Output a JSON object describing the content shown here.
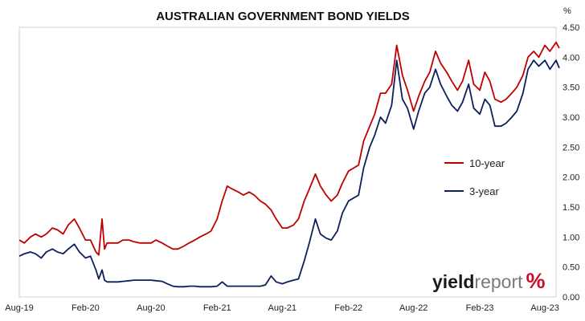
{
  "chart_data": {
    "type": "line",
    "title": "AUSTRALIAN GOVERNMENT BOND YIELDS",
    "ylabel": "%",
    "ylim": [
      0,
      4.5
    ],
    "yticks": [
      "0.00",
      "0.50",
      "1.00",
      "1.50",
      "2.00",
      "2.50",
      "3.00",
      "3.50",
      "4.00",
      "4.50"
    ],
    "x_range": [
      "2019-08",
      "2023-09"
    ],
    "xticks": [
      {
        "date": "2019-08",
        "label": "Aug-19"
      },
      {
        "date": "2020-02",
        "label": "Feb-20"
      },
      {
        "date": "2020-08",
        "label": "Aug-20"
      },
      {
        "date": "2021-02",
        "label": "Feb-21"
      },
      {
        "date": "2021-08",
        "label": "Aug-21"
      },
      {
        "date": "2022-02",
        "label": "Feb-22"
      },
      {
        "date": "2022-08",
        "label": "Aug-22"
      },
      {
        "date": "2023-02",
        "label": "Feb-23"
      },
      {
        "date": "2023-08",
        "label": "Aug-23"
      }
    ],
    "y_axis_side": "right",
    "grid": false,
    "legend_position": "center-right",
    "series": [
      {
        "name": "10-year",
        "color": "#c00000",
        "points": [
          [
            "2019-08-01",
            0.95
          ],
          [
            "2019-08-15",
            0.9
          ],
          [
            "2019-09-01",
            1.0
          ],
          [
            "2019-09-15",
            1.05
          ],
          [
            "2019-10-01",
            1.0
          ],
          [
            "2019-10-15",
            1.05
          ],
          [
            "2019-11-01",
            1.15
          ],
          [
            "2019-11-15",
            1.12
          ],
          [
            "2019-12-01",
            1.05
          ],
          [
            "2019-12-15",
            1.2
          ],
          [
            "2020-01-01",
            1.3
          ],
          [
            "2020-01-15",
            1.15
          ],
          [
            "2020-02-01",
            0.95
          ],
          [
            "2020-02-15",
            0.95
          ],
          [
            "2020-03-01",
            0.75
          ],
          [
            "2020-03-09",
            0.7
          ],
          [
            "2020-03-18",
            1.3
          ],
          [
            "2020-03-25",
            0.8
          ],
          [
            "2020-04-01",
            0.9
          ],
          [
            "2020-04-15",
            0.9
          ],
          [
            "2020-05-01",
            0.9
          ],
          [
            "2020-05-15",
            0.95
          ],
          [
            "2020-06-01",
            0.95
          ],
          [
            "2020-06-15",
            0.92
          ],
          [
            "2020-07-01",
            0.9
          ],
          [
            "2020-07-15",
            0.9
          ],
          [
            "2020-08-01",
            0.9
          ],
          [
            "2020-08-15",
            0.95
          ],
          [
            "2020-09-01",
            0.9
          ],
          [
            "2020-09-15",
            0.85
          ],
          [
            "2020-10-01",
            0.8
          ],
          [
            "2020-10-15",
            0.8
          ],
          [
            "2020-11-01",
            0.85
          ],
          [
            "2020-11-15",
            0.9
          ],
          [
            "2020-12-01",
            0.95
          ],
          [
            "2020-12-15",
            1.0
          ],
          [
            "2021-01-01",
            1.05
          ],
          [
            "2021-01-15",
            1.1
          ],
          [
            "2021-02-01",
            1.3
          ],
          [
            "2021-02-15",
            1.6
          ],
          [
            "2021-03-01",
            1.85
          ],
          [
            "2021-03-15",
            1.8
          ],
          [
            "2021-04-01",
            1.75
          ],
          [
            "2021-04-15",
            1.7
          ],
          [
            "2021-05-01",
            1.75
          ],
          [
            "2021-05-15",
            1.7
          ],
          [
            "2021-06-01",
            1.6
          ],
          [
            "2021-06-15",
            1.55
          ],
          [
            "2021-07-01",
            1.45
          ],
          [
            "2021-07-15",
            1.3
          ],
          [
            "2021-08-01",
            1.15
          ],
          [
            "2021-08-15",
            1.15
          ],
          [
            "2021-09-01",
            1.2
          ],
          [
            "2021-09-15",
            1.3
          ],
          [
            "2021-10-01",
            1.6
          ],
          [
            "2021-10-15",
            1.8
          ],
          [
            "2021-11-01",
            2.05
          ],
          [
            "2021-11-15",
            1.85
          ],
          [
            "2021-12-01",
            1.7
          ],
          [
            "2021-12-15",
            1.6
          ],
          [
            "2022-01-01",
            1.7
          ],
          [
            "2022-01-15",
            1.9
          ],
          [
            "2022-02-01",
            2.1
          ],
          [
            "2022-02-15",
            2.15
          ],
          [
            "2022-03-01",
            2.2
          ],
          [
            "2022-03-15",
            2.6
          ],
          [
            "2022-04-01",
            2.85
          ],
          [
            "2022-04-15",
            3.05
          ],
          [
            "2022-05-01",
            3.4
          ],
          [
            "2022-05-15",
            3.4
          ],
          [
            "2022-06-01",
            3.55
          ],
          [
            "2022-06-15",
            4.2
          ],
          [
            "2022-07-01",
            3.7
          ],
          [
            "2022-07-15",
            3.45
          ],
          [
            "2022-08-01",
            3.1
          ],
          [
            "2022-08-15",
            3.35
          ],
          [
            "2022-09-01",
            3.6
          ],
          [
            "2022-09-15",
            3.75
          ],
          [
            "2022-10-01",
            4.1
          ],
          [
            "2022-10-15",
            3.9
          ],
          [
            "2022-11-01",
            3.75
          ],
          [
            "2022-11-15",
            3.6
          ],
          [
            "2022-12-01",
            3.45
          ],
          [
            "2022-12-15",
            3.6
          ],
          [
            "2023-01-01",
            3.95
          ],
          [
            "2023-01-15",
            3.55
          ],
          [
            "2023-02-01",
            3.45
          ],
          [
            "2023-02-15",
            3.75
          ],
          [
            "2023-03-01",
            3.6
          ],
          [
            "2023-03-15",
            3.3
          ],
          [
            "2023-04-01",
            3.25
          ],
          [
            "2023-04-15",
            3.3
          ],
          [
            "2023-05-01",
            3.4
          ],
          [
            "2023-05-15",
            3.5
          ],
          [
            "2023-06-01",
            3.7
          ],
          [
            "2023-06-15",
            4.0
          ],
          [
            "2023-07-01",
            4.1
          ],
          [
            "2023-07-15",
            4.0
          ],
          [
            "2023-08-01",
            4.2
          ],
          [
            "2023-08-15",
            4.1
          ],
          [
            "2023-09-01",
            4.25
          ],
          [
            "2023-09-10",
            4.15
          ]
        ]
      },
      {
        "name": "3-year",
        "color": "#0d1f5c",
        "points": [
          [
            "2019-08-01",
            0.68
          ],
          [
            "2019-08-15",
            0.72
          ],
          [
            "2019-09-01",
            0.75
          ],
          [
            "2019-09-15",
            0.72
          ],
          [
            "2019-10-01",
            0.65
          ],
          [
            "2019-10-15",
            0.75
          ],
          [
            "2019-11-01",
            0.8
          ],
          [
            "2019-11-15",
            0.75
          ],
          [
            "2019-12-01",
            0.72
          ],
          [
            "2019-12-15",
            0.8
          ],
          [
            "2020-01-01",
            0.88
          ],
          [
            "2020-01-15",
            0.75
          ],
          [
            "2020-02-01",
            0.65
          ],
          [
            "2020-02-15",
            0.68
          ],
          [
            "2020-03-01",
            0.45
          ],
          [
            "2020-03-09",
            0.3
          ],
          [
            "2020-03-18",
            0.45
          ],
          [
            "2020-03-25",
            0.28
          ],
          [
            "2020-04-01",
            0.25
          ],
          [
            "2020-04-15",
            0.25
          ],
          [
            "2020-05-01",
            0.25
          ],
          [
            "2020-05-15",
            0.26
          ],
          [
            "2020-06-01",
            0.27
          ],
          [
            "2020-06-15",
            0.28
          ],
          [
            "2020-07-01",
            0.28
          ],
          [
            "2020-07-15",
            0.28
          ],
          [
            "2020-08-01",
            0.28
          ],
          [
            "2020-08-15",
            0.27
          ],
          [
            "2020-09-01",
            0.26
          ],
          [
            "2020-09-15",
            0.22
          ],
          [
            "2020-10-01",
            0.18
          ],
          [
            "2020-10-15",
            0.17
          ],
          [
            "2020-11-01",
            0.17
          ],
          [
            "2020-11-15",
            0.18
          ],
          [
            "2020-12-01",
            0.18
          ],
          [
            "2020-12-15",
            0.17
          ],
          [
            "2021-01-01",
            0.17
          ],
          [
            "2021-01-15",
            0.17
          ],
          [
            "2021-02-01",
            0.18
          ],
          [
            "2021-02-15",
            0.25
          ],
          [
            "2021-03-01",
            0.18
          ],
          [
            "2021-03-15",
            0.18
          ],
          [
            "2021-04-01",
            0.18
          ],
          [
            "2021-04-15",
            0.18
          ],
          [
            "2021-05-01",
            0.18
          ],
          [
            "2021-05-15",
            0.18
          ],
          [
            "2021-06-01",
            0.18
          ],
          [
            "2021-06-15",
            0.2
          ],
          [
            "2021-07-01",
            0.35
          ],
          [
            "2021-07-15",
            0.25
          ],
          [
            "2021-08-01",
            0.22
          ],
          [
            "2021-08-15",
            0.25
          ],
          [
            "2021-09-01",
            0.28
          ],
          [
            "2021-09-15",
            0.3
          ],
          [
            "2021-10-01",
            0.6
          ],
          [
            "2021-10-15",
            0.9
          ],
          [
            "2021-11-01",
            1.3
          ],
          [
            "2021-11-15",
            1.05
          ],
          [
            "2021-12-01",
            0.98
          ],
          [
            "2021-12-15",
            0.95
          ],
          [
            "2022-01-01",
            1.1
          ],
          [
            "2022-01-15",
            1.4
          ],
          [
            "2022-02-01",
            1.6
          ],
          [
            "2022-02-15",
            1.65
          ],
          [
            "2022-03-01",
            1.7
          ],
          [
            "2022-03-15",
            2.15
          ],
          [
            "2022-04-01",
            2.5
          ],
          [
            "2022-04-15",
            2.7
          ],
          [
            "2022-05-01",
            3.0
          ],
          [
            "2022-05-15",
            2.9
          ],
          [
            "2022-06-01",
            3.2
          ],
          [
            "2022-06-15",
            3.95
          ],
          [
            "2022-07-01",
            3.3
          ],
          [
            "2022-07-15",
            3.15
          ],
          [
            "2022-08-01",
            2.8
          ],
          [
            "2022-08-15",
            3.1
          ],
          [
            "2022-09-01",
            3.4
          ],
          [
            "2022-09-15",
            3.5
          ],
          [
            "2022-10-01",
            3.8
          ],
          [
            "2022-10-15",
            3.55
          ],
          [
            "2022-11-01",
            3.35
          ],
          [
            "2022-11-15",
            3.2
          ],
          [
            "2022-12-01",
            3.1
          ],
          [
            "2022-12-15",
            3.25
          ],
          [
            "2023-01-01",
            3.55
          ],
          [
            "2023-01-15",
            3.15
          ],
          [
            "2023-02-01",
            3.05
          ],
          [
            "2023-02-15",
            3.3
          ],
          [
            "2023-03-01",
            3.2
          ],
          [
            "2023-03-15",
            2.85
          ],
          [
            "2023-04-01",
            2.85
          ],
          [
            "2023-04-15",
            2.9
          ],
          [
            "2023-05-01",
            3.0
          ],
          [
            "2023-05-15",
            3.1
          ],
          [
            "2023-06-01",
            3.4
          ],
          [
            "2023-06-15",
            3.8
          ],
          [
            "2023-07-01",
            3.95
          ],
          [
            "2023-07-15",
            3.85
          ],
          [
            "2023-08-01",
            3.95
          ],
          [
            "2023-08-15",
            3.8
          ],
          [
            "2023-09-01",
            3.95
          ],
          [
            "2023-09-10",
            3.82
          ]
        ]
      }
    ]
  },
  "watermark": {
    "part1": "yield",
    "part2": "report",
    "part3": "%"
  }
}
